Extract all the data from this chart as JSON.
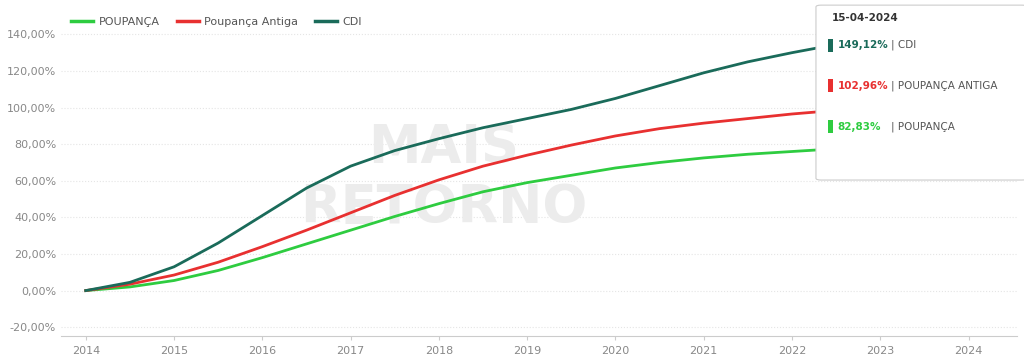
{
  "legend_entries": [
    "POUPANÇA",
    "Poupança Antiga",
    "CDI"
  ],
  "legend_colors": [
    "#2ecc40",
    "#e83030",
    "#1a6b5a"
  ],
  "yticks": [
    -20,
    0,
    20,
    40,
    60,
    80,
    100,
    120,
    140
  ],
  "ylim": [
    -25,
    155
  ],
  "annotation_box": {
    "date": "15-04-2024",
    "items": [
      {
        "value": "149,12%",
        "label": "CDI",
        "color": "#1a6b5a"
      },
      {
        "value": "102,96%",
        "label": "POUPANÇA ANTIGA",
        "color": "#e83030"
      },
      {
        "value": "82,83%",
        "label": "POUPANÇA",
        "color": "#2ecc40"
      }
    ]
  },
  "poupanca_data": [
    0.0,
    2.0,
    5.5,
    11.0,
    18.0,
    25.5,
    33.0,
    40.5,
    47.5,
    54.0,
    59.0,
    63.0,
    67.0,
    70.0,
    72.5,
    74.5,
    76.0,
    77.5,
    79.0,
    80.5,
    82.83
  ],
  "poupanca_antiga_data": [
    0.0,
    3.5,
    8.5,
    15.5,
    24.0,
    33.0,
    42.5,
    52.0,
    60.5,
    68.0,
    74.0,
    79.5,
    84.5,
    88.5,
    91.5,
    94.0,
    96.5,
    98.5,
    100.0,
    101.5,
    102.96
  ],
  "cdi_data": [
    0.0,
    4.5,
    13.0,
    26.0,
    41.0,
    56.0,
    68.0,
    76.5,
    83.0,
    89.0,
    94.0,
    99.0,
    105.0,
    112.0,
    119.0,
    125.0,
    130.0,
    134.5,
    138.5,
    143.0,
    149.12
  ],
  "background_color": "#ffffff",
  "grid_color": "#e5e5e5",
  "watermark_text": "MAIS\nRETORNO",
  "watermark_color": "#ececec",
  "line_width": 2.0
}
